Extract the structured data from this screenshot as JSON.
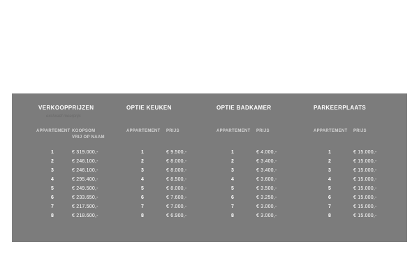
{
  "colors": {
    "page_background": "#ffffff",
    "panel_background": "#7c7c7c",
    "title_text": "#ffffff",
    "subtitle_text": "#6a6a6a",
    "header_text": "#d4d4d4",
    "value_text": "#ffffff"
  },
  "panel": {
    "tables": [
      {
        "title": "VERKOOPPRIJZEN",
        "subtitle": "exclusief meerprijs",
        "col1_header": "APPARTEMENT",
        "col2_header_line1": "KOOPSOM",
        "col2_header_line2": "VRIJ OP NAAM",
        "rows": [
          {
            "apartment": "1",
            "price": "€ 319.000,-"
          },
          {
            "apartment": "2",
            "price": "€ 246.100,-"
          },
          {
            "apartment": "3",
            "price": "€ 246.100,-"
          },
          {
            "apartment": "4",
            "price": "€ 295.400,-"
          },
          {
            "apartment": "5",
            "price": "€ 249.500,-"
          },
          {
            "apartment": "6",
            "price": "€ 233.650,-"
          },
          {
            "apartment": "7",
            "price": "€ 217.500,-"
          },
          {
            "apartment": "8",
            "price": "€ 218.600,-"
          }
        ]
      },
      {
        "title": "OPTIE KEUKEN",
        "col1_header": "APPARTEMENT",
        "col2_header_line1": "PRIJS",
        "rows": [
          {
            "apartment": "1",
            "price": "€ 9.500,-"
          },
          {
            "apartment": "2",
            "price": "€ 8.000,-"
          },
          {
            "apartment": "3",
            "price": "€ 8.000,-"
          },
          {
            "apartment": "4",
            "price": "€ 8.500,-"
          },
          {
            "apartment": "5",
            "price": "€ 8.000,-"
          },
          {
            "apartment": "6",
            "price": "€ 7.600,-"
          },
          {
            "apartment": "7",
            "price": "€ 7.000,-"
          },
          {
            "apartment": "8",
            "price": "€ 6.900,-"
          }
        ]
      },
      {
        "title": "OPTIE BADKAMER",
        "col1_header": "APPARTEMENT",
        "col2_header_line1": "PRIJS",
        "rows": [
          {
            "apartment": "1",
            "price": "€ 4.000,-"
          },
          {
            "apartment": "2",
            "price": "€ 3.400,-"
          },
          {
            "apartment": "3",
            "price": "€ 3.400,-"
          },
          {
            "apartment": "4",
            "price": "€ 3.600,-"
          },
          {
            "apartment": "5",
            "price": "€ 3.500,-"
          },
          {
            "apartment": "6",
            "price": "€ 3.250,-"
          },
          {
            "apartment": "7",
            "price": "€ 3.000,-"
          },
          {
            "apartment": "8",
            "price": "€ 3.000,-"
          }
        ]
      },
      {
        "title": "PARKEERPLAATS",
        "col1_header": "APPARTEMENT",
        "col2_header_line1": "PRIJS",
        "rows": [
          {
            "apartment": "1",
            "price": "€ 15.000,-"
          },
          {
            "apartment": "2",
            "price": "€ 15.000,-"
          },
          {
            "apartment": "3",
            "price": "€ 15.000,-"
          },
          {
            "apartment": "4",
            "price": "€ 15.000,-"
          },
          {
            "apartment": "5",
            "price": "€ 15.000,-"
          },
          {
            "apartment": "6",
            "price": "€ 15.000,-"
          },
          {
            "apartment": "7",
            "price": "€ 15.000,-"
          },
          {
            "apartment": "8",
            "price": "€ 15.000,-"
          }
        ]
      }
    ]
  }
}
